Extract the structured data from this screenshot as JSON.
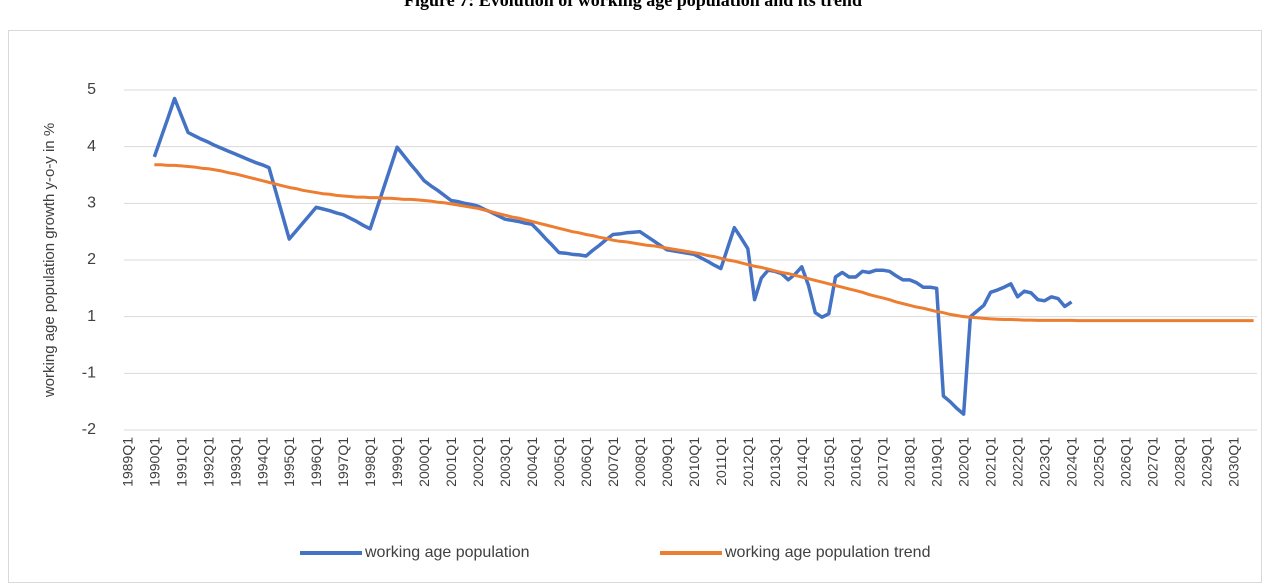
{
  "chart_data": {
    "type": "line",
    "title": "Figure 7: Evolution of working age population and its trend",
    "y_label": "working age population growth  y-o-y in %",
    "categories": [
      "1989Q1",
      null,
      null,
      null,
      "1990Q1",
      null,
      null,
      null,
      "1991Q1",
      null,
      null,
      null,
      "1992Q1",
      null,
      null,
      null,
      "1993Q1",
      null,
      null,
      null,
      "1994Q1",
      null,
      null,
      null,
      "1995Q1",
      null,
      null,
      null,
      "1996Q1",
      null,
      null,
      null,
      "1997Q1",
      null,
      null,
      null,
      "1998Q1",
      null,
      null,
      null,
      "1999Q1",
      null,
      null,
      null,
      "2000Q1",
      null,
      null,
      null,
      "2001Q1",
      null,
      null,
      null,
      "2002Q1",
      null,
      null,
      null,
      "2003Q1",
      null,
      null,
      null,
      "2004Q1",
      null,
      null,
      null,
      "2005Q1",
      null,
      null,
      null,
      "2006Q1",
      null,
      null,
      null,
      "2007Q1",
      null,
      null,
      null,
      "2008Q1",
      null,
      null,
      null,
      "2009Q1",
      null,
      null,
      null,
      "2010Q1",
      null,
      null,
      null,
      "2011Q1",
      null,
      null,
      null,
      "2012Q1",
      null,
      null,
      null,
      "2013Q1",
      null,
      null,
      null,
      "2014Q1",
      null,
      null,
      null,
      "2015Q1",
      null,
      null,
      null,
      "2016Q1",
      null,
      null,
      null,
      "2017Q1",
      null,
      null,
      null,
      "2018Q1",
      null,
      null,
      null,
      "2019Q1",
      null,
      null,
      null,
      "2020Q1",
      null,
      null,
      null,
      "2021Q1",
      null,
      null,
      null,
      "2022Q1",
      null,
      null,
      null,
      "2023Q1",
      null,
      null,
      null,
      "2024Q1",
      null,
      null,
      null,
      "2025Q1",
      null,
      null,
      null,
      "2026Q1",
      null,
      null,
      null,
      "2027Q1",
      null,
      null,
      null,
      "2028Q1",
      null,
      null,
      null,
      "2029Q1",
      null,
      null,
      null,
      "2030Q1",
      null,
      null,
      null
    ],
    "series": [
      {
        "name": "working age population",
        "color": "#4472c4",
        "values": [
          null,
          null,
          null,
          null,
          3.82,
          4.16,
          4.5,
          4.85,
          4.55,
          4.25,
          4.19,
          4.13,
          4.08,
          4.02,
          3.97,
          3.92,
          3.87,
          3.82,
          3.77,
          3.72,
          3.68,
          3.63,
          3.21,
          2.79,
          2.37,
          2.51,
          2.65,
          2.79,
          2.93,
          2.9,
          2.87,
          2.83,
          2.8,
          2.74,
          2.68,
          2.61,
          2.55,
          2.91,
          3.27,
          3.63,
          3.99,
          3.84,
          3.69,
          3.55,
          3.4,
          3.31,
          3.23,
          3.14,
          3.05,
          3.03,
          3.0,
          2.98,
          2.95,
          2.89,
          2.84,
          2.78,
          2.72,
          2.7,
          2.68,
          2.65,
          2.63,
          2.51,
          2.38,
          2.26,
          2.13,
          2.12,
          2.1,
          2.09,
          2.07,
          2.17,
          2.26,
          2.36,
          2.45,
          2.46,
          2.48,
          2.49,
          2.5,
          2.42,
          2.34,
          2.26,
          2.18,
          2.16,
          2.14,
          2.12,
          2.1,
          2.04,
          1.98,
          1.91,
          1.85,
          2.21,
          2.57,
          2.39,
          2.2,
          1.3,
          1.68,
          1.82,
          1.8,
          1.76,
          1.65,
          1.75,
          1.88,
          1.55,
          1.07,
          0.98,
          1.05,
          1.7,
          1.78,
          1.7,
          1.7,
          1.8,
          1.78,
          1.82,
          1.82,
          1.8,
          1.72,
          1.65,
          1.65,
          1.6,
          1.52,
          1.52,
          1.5,
          -1.4,
          -1.5,
          -1.62,
          -1.72,
          1.0,
          1.1,
          1.2,
          1.43,
          1.47,
          1.52,
          1.58,
          1.35,
          1.45,
          1.42,
          1.3,
          1.28,
          1.35,
          1.32,
          1.18,
          1.26,
          null,
          null,
          null,
          null,
          null,
          null,
          null,
          null,
          null,
          null,
          null,
          null,
          null,
          null,
          null,
          null,
          null,
          null,
          null,
          null,
          null,
          null,
          null,
          null,
          null,
          null,
          null
        ]
      },
      {
        "name": "working age population trend",
        "color": "#ed7d31",
        "values": [
          null,
          null,
          null,
          null,
          3.68,
          3.68,
          3.67,
          3.67,
          3.66,
          3.65,
          3.64,
          3.62,
          3.61,
          3.59,
          3.57,
          3.54,
          3.52,
          3.49,
          3.46,
          3.43,
          3.4,
          3.37,
          3.34,
          3.31,
          3.28,
          3.26,
          3.23,
          3.21,
          3.19,
          3.17,
          3.16,
          3.14,
          3.13,
          3.12,
          3.11,
          3.11,
          3.1,
          3.1,
          3.09,
          3.09,
          3.08,
          3.07,
          3.07,
          3.06,
          3.05,
          3.04,
          3.02,
          3.01,
          2.99,
          2.97,
          2.95,
          2.93,
          2.91,
          2.88,
          2.85,
          2.82,
          2.79,
          2.76,
          2.74,
          2.71,
          2.68,
          2.65,
          2.62,
          2.59,
          2.56,
          2.53,
          2.5,
          2.48,
          2.45,
          2.43,
          2.4,
          2.38,
          2.35,
          2.33,
          2.32,
          2.3,
          2.28,
          2.26,
          2.25,
          2.23,
          2.21,
          2.19,
          2.17,
          2.15,
          2.13,
          2.11,
          2.08,
          2.06,
          2.03,
          2.0,
          1.98,
          1.95,
          1.92,
          1.89,
          1.87,
          1.84,
          1.81,
          1.78,
          1.76,
          1.73,
          1.7,
          1.67,
          1.64,
          1.61,
          1.58,
          1.55,
          1.52,
          1.49,
          1.46,
          1.43,
          1.39,
          1.36,
          1.33,
          1.3,
          1.26,
          1.23,
          1.2,
          1.17,
          1.15,
          1.12,
          1.09,
          1.07,
          1.04,
          1.02,
          1.0,
          0.98,
          0.96,
          0.94,
          0.92,
          0.91,
          0.9,
          0.9,
          0.89,
          0.88,
          0.88,
          0.87,
          0.87,
          0.87,
          0.87,
          0.87,
          0.87,
          0.86,
          0.86,
          0.86,
          0.86,
          0.86,
          0.86,
          0.86,
          0.86,
          0.86,
          0.86,
          0.86,
          0.86,
          0.86,
          0.86,
          0.86,
          0.86,
          0.86,
          0.86,
          0.86,
          0.86,
          0.86,
          0.86,
          0.86,
          0.86,
          0.86,
          0.86,
          0.86
        ]
      }
    ],
    "ylim": [
      -2,
      5
    ],
    "yticks": [
      5,
      4,
      3,
      2,
      1,
      -1,
      -2
    ],
    "grid": true,
    "legend": "bottom"
  }
}
